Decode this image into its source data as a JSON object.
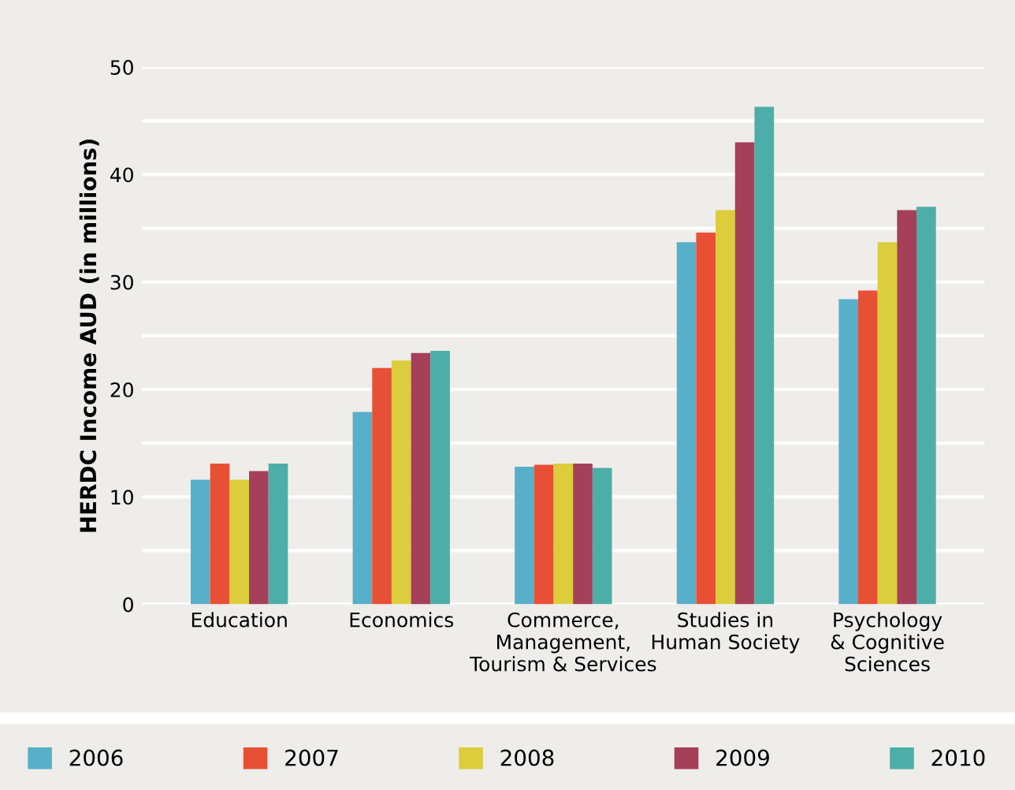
{
  "chart_data": {
    "type": "bar",
    "ylabel": "HERDC Income AUD (in millions)",
    "categories": [
      "Education",
      "Economics",
      "Commerce,\nManagement,\nTourism & Services",
      "Studies in\nHuman Society",
      "Psychology\n& Cognitive\nSciences"
    ],
    "series": [
      {
        "name": "2006",
        "color": "#57afc9",
        "values": [
          11.6,
          17.9,
          12.8,
          33.7,
          28.4
        ]
      },
      {
        "name": "2007",
        "color": "#e85035",
        "values": [
          13.1,
          22.0,
          13.0,
          34.6,
          29.2
        ]
      },
      {
        "name": "2008",
        "color": "#dccd3c",
        "values": [
          11.6,
          22.7,
          13.1,
          36.7,
          33.7
        ]
      },
      {
        "name": "2009",
        "color": "#a63f58",
        "values": [
          12.4,
          23.4,
          13.1,
          43.0,
          36.7
        ]
      },
      {
        "name": "2010",
        "color": "#4daea9",
        "values": [
          13.1,
          23.6,
          12.7,
          46.3,
          37.0
        ]
      }
    ],
    "ylim": [
      0,
      50
    ],
    "yticks": [
      0,
      {
        "value": 5,
        "label": null
      },
      10,
      {
        "value": 15,
        "label": null
      },
      20,
      {
        "value": 25,
        "label": null
      },
      30,
      {
        "value": 35,
        "label": null
      },
      40,
      {
        "value": 45,
        "label": null
      },
      50
    ],
    "grid": "y",
    "legend": "bottom"
  }
}
